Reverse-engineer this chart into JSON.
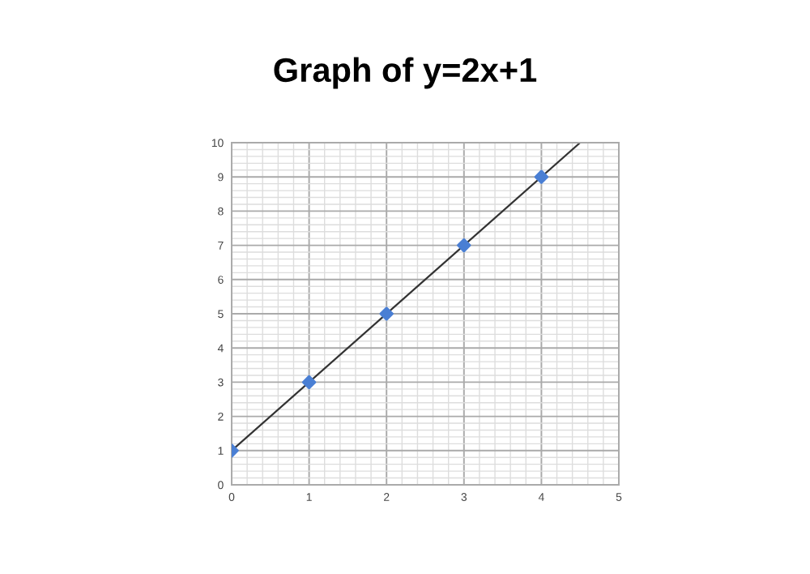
{
  "chart_data": {
    "type": "scatter",
    "title": "Graph of y=2x+1",
    "series": [
      {
        "color": "#4a7fd4",
        "marker": "diamond",
        "x": [
          0,
          1,
          2,
          3,
          4
        ],
        "values": [
          1,
          3,
          5,
          7,
          9
        ]
      },
      {
        "type": "line",
        "color": "#333333",
        "marker": "none",
        "x": [
          0,
          4.5
        ],
        "values": [
          1,
          10
        ]
      }
    ],
    "xlim": [
      0,
      5
    ],
    "ylim": [
      0,
      10
    ],
    "xticks": [
      0,
      1,
      2,
      3,
      4,
      5
    ],
    "yticks": [
      0,
      1,
      2,
      3,
      4,
      5,
      6,
      7,
      8,
      9,
      10
    ],
    "grid": true
  }
}
